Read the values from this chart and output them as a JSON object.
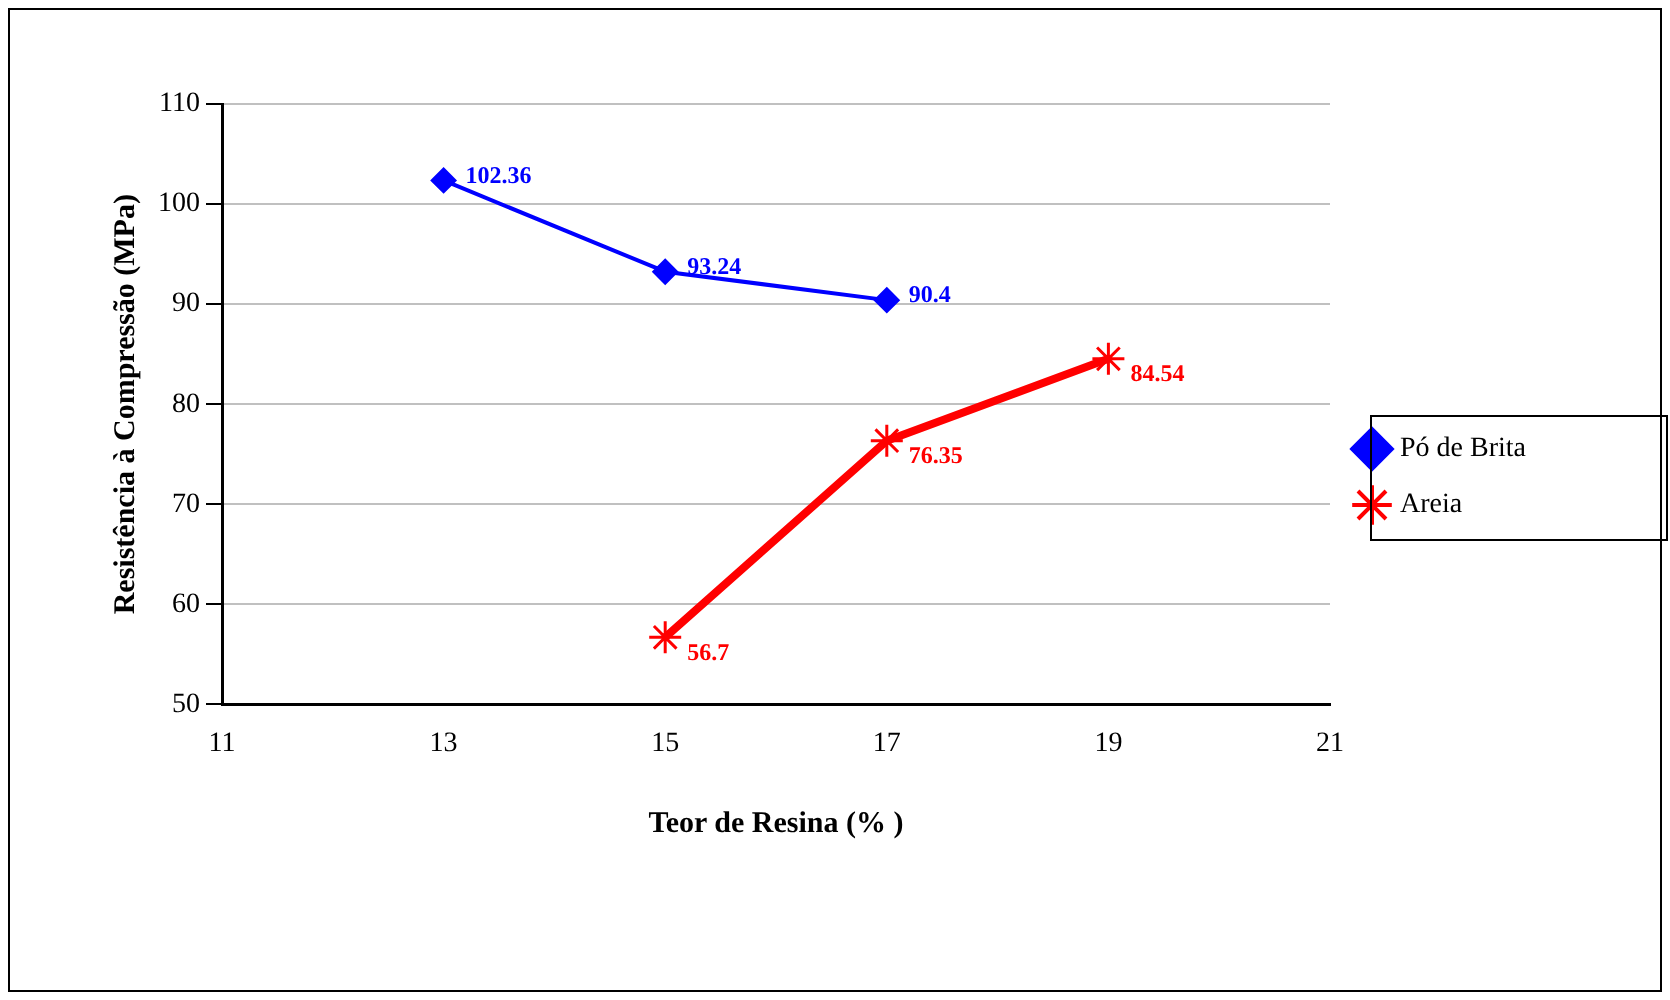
{
  "chart_data": {
    "type": "line",
    "xlabel": "Teor de Resina (% )",
    "ylabel": "Resistência à Compressão (MPa)",
    "xlim": [
      11,
      21
    ],
    "xticks": [
      11,
      13,
      15,
      17,
      19,
      21
    ],
    "ylim": [
      50,
      110
    ],
    "yticks": [
      50,
      60,
      70,
      80,
      90,
      100,
      110
    ],
    "grid": "y",
    "legend": "right",
    "data_labels": true,
    "series": [
      {
        "name": "Pó de Brita",
        "color": "#0000ff",
        "marker": "diamond",
        "x": [
          13,
          15,
          17
        ],
        "values": [
          102.36,
          93.24,
          90.4
        ]
      },
      {
        "name": "Areia",
        "color": "#ff0000",
        "marker": "cross",
        "x": [
          15,
          17,
          19
        ],
        "values": [
          56.7,
          76.35,
          84.54
        ]
      }
    ]
  }
}
